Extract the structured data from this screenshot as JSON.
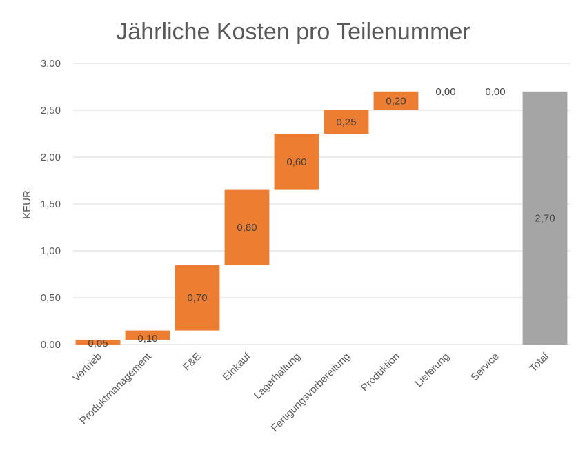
{
  "chart_data": {
    "type": "bar",
    "subtype": "waterfall",
    "title": "Jährliche Kosten pro Teilenummer",
    "ylabel": "KEUR",
    "xlabel": "",
    "ylim": [
      0,
      3
    ],
    "ytick_values": [
      0,
      0.5,
      1,
      1.5,
      2,
      2.5,
      3
    ],
    "ytick_labels": [
      "0,00",
      "0,50",
      "1,00",
      "1,50",
      "2,00",
      "2,50",
      "3,00"
    ],
    "grid": true,
    "categories": [
      "Vertrieb",
      "Produktmanagement",
      "F&E",
      "Einkauf",
      "Lagerhaltung",
      "Fertigungsvorbereitung",
      "Produktion",
      "Lieferung",
      "Service",
      "Total"
    ],
    "values": [
      0.05,
      0.1,
      0.7,
      0.8,
      0.6,
      0.25,
      0.2,
      0.0,
      0.0,
      2.7
    ],
    "value_labels": [
      "0,05",
      "0,10",
      "0,70",
      "0,80",
      "0,60",
      "0,25",
      "0,20",
      "0,00",
      "0,00",
      "2,70"
    ],
    "total_index": 9,
    "colors": {
      "increase": "#ED7D31",
      "total": "#A5A5A5",
      "text": "#595959",
      "grid": "#D9D9D9"
    }
  }
}
